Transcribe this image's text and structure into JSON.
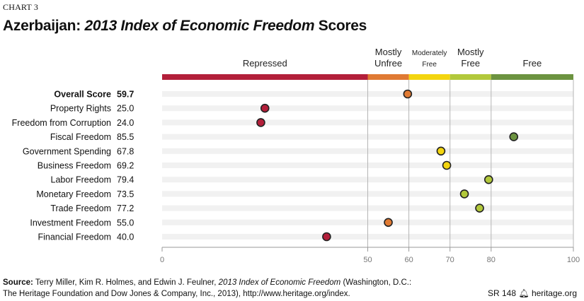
{
  "header": {
    "chart_label": "CHART 3",
    "title_country": "Azerbaijan: ",
    "title_italic": "2013 Index of Economic Freedom",
    "title_suffix": " Scores"
  },
  "footer": {
    "source_label": "Source:",
    "source_text1": " Terry Miller, Kim R. Holmes, and Edwin J. Feulner, ",
    "source_italic": "2013 Index of Economic Freedom",
    "source_text2": " (Washington, D.C.:",
    "source_line2": "The Heritage Foundation and Dow Jones & Company, Inc., 2013), http://www.heritage.org/index.",
    "report_code": "SR 148",
    "site": "heritage.org"
  },
  "chart_data": {
    "type": "scatter",
    "title": "Azerbaijan: 2013 Index of Economic Freedom Scores",
    "xlim": [
      0,
      100
    ],
    "x_ticks": [
      0,
      50,
      60,
      70,
      80,
      100
    ],
    "grid": true,
    "bands": [
      {
        "label": [
          "Repressed"
        ],
        "from": 0,
        "to": 50,
        "color": "#b31f3a"
      },
      {
        "label": [
          "Mostly",
          "Unfree"
        ],
        "from": 50,
        "to": 60,
        "color": "#e07a33"
      },
      {
        "label": [
          "Moderately",
          "Free"
        ],
        "from": 60,
        "to": 70,
        "color": "#f3d50f"
      },
      {
        "label": [
          "Mostly",
          "Free"
        ],
        "from": 70,
        "to": 80,
        "color": "#b2c83b"
      },
      {
        "label": [
          "Free"
        ],
        "from": 80,
        "to": 100,
        "color": "#6c9340"
      }
    ],
    "categories": [
      "Overall Score",
      "Property Rights",
      "Freedom from Corruption",
      "Fiscal Freedom",
      "Government Spending",
      "Business Freedom",
      "Labor Freedom",
      "Monetary Freedom",
      "Trade Freedom",
      "Investment Freedom",
      "Financial Freedom"
    ],
    "values": [
      59.7,
      25.0,
      24.0,
      85.5,
      67.8,
      69.2,
      79.4,
      73.5,
      77.2,
      55.0,
      40.0
    ]
  }
}
